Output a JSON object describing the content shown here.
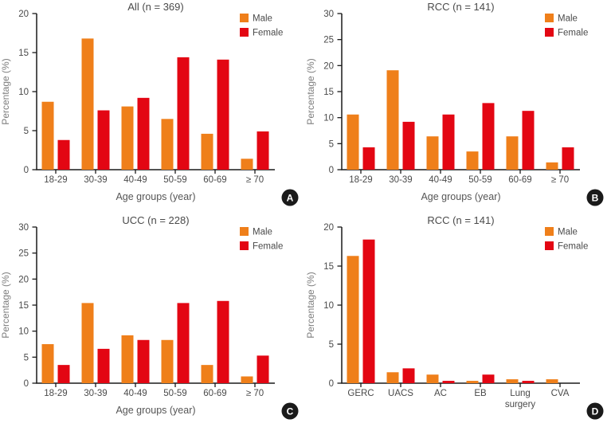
{
  "figure": {
    "name": "age-and-cause-distribution-bar-charts",
    "background": "#ffffff",
    "colors": {
      "male": "#EF7F1A",
      "female": "#E30613",
      "axis": "#1A1A1A",
      "tick_label": "#4A4A4A",
      "title": "#4A4A4A",
      "x_axis_title": "#555555",
      "y_axis_title": "#7D7D7D",
      "legend_label": "#4A4A4A",
      "badge_bg": "#1A1A1A",
      "badge_text": "#FFFFFF"
    }
  },
  "chart_data": [
    {
      "type": "bar",
      "panel_label": "A",
      "title": "All (n = 369)",
      "xlabel": "Age groups (year)",
      "ylabel": "Percentage (%)",
      "ylim": [
        0,
        20
      ],
      "ytick_step": 5,
      "grid": false,
      "legend_position": "top-right",
      "categories": [
        "18-29",
        "30-39",
        "40-49",
        "50-59",
        "60-69",
        "≥ 70"
      ],
      "series": [
        {
          "name": "Male",
          "color_key": "male",
          "values": [
            8.7,
            16.8,
            8.1,
            6.5,
            4.6,
            1.4
          ]
        },
        {
          "name": "Female",
          "color_key": "female",
          "values": [
            3.8,
            7.6,
            9.2,
            14.4,
            14.1,
            4.9
          ]
        }
      ]
    },
    {
      "type": "bar",
      "panel_label": "B",
      "title": "RCC (n = 141)",
      "xlabel": "Age groups (year)",
      "ylabel": "Percentage (%)",
      "ylim": [
        0,
        30
      ],
      "ytick_step": 5,
      "grid": false,
      "legend_position": "top-right",
      "categories": [
        "18-29",
        "30-39",
        "40-49",
        "50-59",
        "60-69",
        "≥ 70"
      ],
      "series": [
        {
          "name": "Male",
          "color_key": "male",
          "values": [
            10.6,
            19.1,
            6.4,
            3.5,
            6.4,
            1.4
          ]
        },
        {
          "name": "Female",
          "color_key": "female",
          "values": [
            4.3,
            9.2,
            10.6,
            12.8,
            11.3,
            4.3
          ]
        }
      ]
    },
    {
      "type": "bar",
      "panel_label": "C",
      "title": "UCC (n = 228)",
      "xlabel": "Age groups (year)",
      "ylabel": "Percentage (%)",
      "ylim": [
        0,
        30
      ],
      "ytick_step": 5,
      "grid": false,
      "legend_position": "top-right",
      "categories": [
        "18-29",
        "30-39",
        "40-49",
        "50-59",
        "60-69",
        "≥ 70"
      ],
      "series": [
        {
          "name": "Male",
          "color_key": "male",
          "values": [
            7.5,
            15.4,
            9.2,
            8.3,
            3.5,
            1.3
          ]
        },
        {
          "name": "Female",
          "color_key": "female",
          "values": [
            3.5,
            6.6,
            8.3,
            15.4,
            15.8,
            5.3
          ]
        }
      ]
    },
    {
      "type": "bar",
      "panel_label": "D",
      "title": "RCC (n = 141)",
      "xlabel": "",
      "ylabel": "Percentage (%)",
      "ylim": [
        0,
        20
      ],
      "ytick_step": 5,
      "grid": false,
      "legend_position": "top-right",
      "categories": [
        "GERC",
        "UACS",
        "AC",
        "EB",
        "Lung surgery",
        "CVA"
      ],
      "series": [
        {
          "name": "Male",
          "color_key": "male",
          "values": [
            16.3,
            1.4,
            1.1,
            0.3,
            0.5,
            0.5
          ]
        },
        {
          "name": "Female",
          "color_key": "female",
          "values": [
            18.4,
            1.9,
            0.3,
            1.1,
            0.3,
            0
          ]
        }
      ]
    }
  ]
}
